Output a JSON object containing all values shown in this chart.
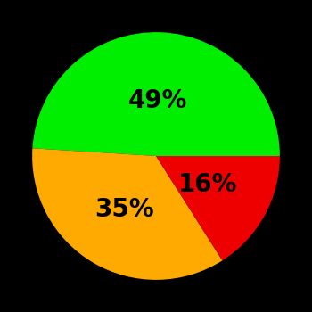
{
  "slices": [
    49,
    35,
    16
  ],
  "colors": [
    "#00ee00",
    "#ffaa00",
    "#ee0000"
  ],
  "labels": [
    "49%",
    "35%",
    "16%"
  ],
  "background_color": "#000000",
  "text_color": "#000000",
  "font_size": 20,
  "font_weight": "bold",
  "startangle": 0,
  "label_distances": [
    0.45,
    0.5,
    0.48
  ]
}
